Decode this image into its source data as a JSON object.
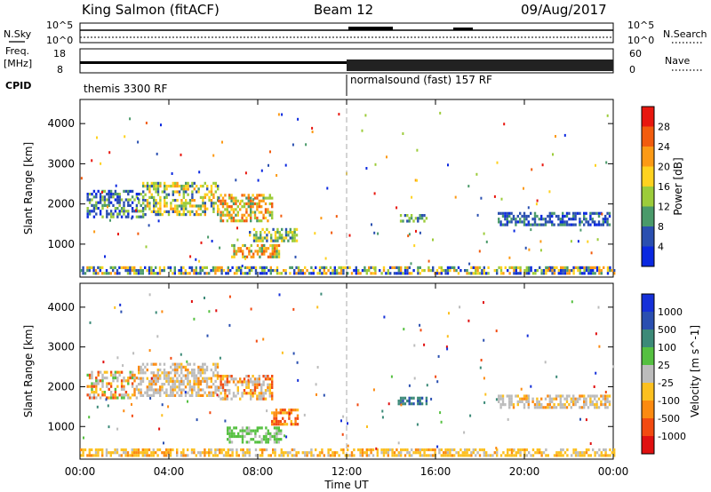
{
  "header": {
    "station": "King Salmon (fitACF)",
    "beam": "Beam 12",
    "date": "09/Aug/2017"
  },
  "top_panels": {
    "nsky_label": "N.Sky",
    "nsearch_label": "N.Search",
    "noise_ticks": [
      "10^5",
      "10^0"
    ],
    "freq_label": "Freq.",
    "freq_unit": "[MHz]",
    "freq_ticks": [
      "18",
      "8"
    ],
    "nave_label": "Nave",
    "nave_ticks": [
      "60",
      "0"
    ],
    "cpid_label": "CPID",
    "cpid_segments": [
      {
        "label": "themis 3300 RF",
        "start_hour": 0
      },
      {
        "label": "normalsound (fast) 157 RF",
        "start_hour": 12
      }
    ]
  },
  "chart_data": [
    {
      "type": "heatmap",
      "name": "power",
      "ylabel": "Slant Range [km]",
      "yticks": [
        1000,
        2000,
        3000,
        4000
      ],
      "ylim": [
        180,
        4600
      ],
      "xlim": [
        0,
        24
      ],
      "colorbar": {
        "label": "Power [dB]",
        "ticks": [
          "28",
          "24",
          "20",
          "16",
          "12",
          "8",
          "4"
        ],
        "colors": [
          "#e8170f",
          "#f25c0e",
          "#fc9a15",
          "#ffd21f",
          "#9ccc3a",
          "#4a9a6a",
          "#2a4fb0",
          "#0a28e0"
        ]
      },
      "regions": [
        {
          "x0": 0.3,
          "x1": 2.8,
          "y0": 1700,
          "y1": 2350,
          "palette": [
            6,
            6,
            5,
            7,
            4
          ]
        },
        {
          "x0": 2.8,
          "x1": 6.2,
          "y0": 1750,
          "y1": 2550,
          "palette": [
            4,
            3,
            5,
            2,
            6,
            4,
            3
          ]
        },
        {
          "x0": 6.2,
          "x1": 8.6,
          "y0": 1600,
          "y1": 2250,
          "palette": [
            2,
            1,
            3,
            4,
            2,
            5
          ]
        },
        {
          "x0": 7.6,
          "x1": 9.8,
          "y0": 1100,
          "y1": 1400,
          "palette": [
            5,
            4,
            6,
            3
          ]
        },
        {
          "x0": 6.8,
          "x1": 9.0,
          "y0": 650,
          "y1": 1000,
          "palette": [
            2,
            1,
            3,
            4,
            5
          ]
        },
        {
          "x0": 0,
          "x1": 24,
          "y0": 250,
          "y1": 450,
          "palette": [
            6,
            7,
            5,
            4,
            3,
            2
          ]
        },
        {
          "x0": 14.3,
          "x1": 15.6,
          "y0": 1550,
          "y1": 1750,
          "palette": [
            5,
            6,
            4
          ]
        },
        {
          "x0": 18.8,
          "x1": 23.8,
          "y0": 1500,
          "y1": 1800,
          "palette": [
            6,
            7,
            5,
            6
          ]
        }
      ]
    },
    {
      "type": "heatmap",
      "name": "velocity",
      "ylabel": "Slant Range [km]",
      "yticks": [
        1000,
        2000,
        3000,
        4000
      ],
      "ylim": [
        180,
        4600
      ],
      "xlim": [
        0,
        24
      ],
      "xticks": [
        "00:00",
        "04:00",
        "08:00",
        "12:00",
        "16:00",
        "20:00",
        "00:00"
      ],
      "xlabel": "Time UT",
      "colorbar": {
        "label": "Velocity [m s^-1]",
        "ticks": [
          "1000",
          "500",
          "100",
          "25",
          "-25",
          "-100",
          "-500",
          "-1000"
        ],
        "colors": [
          "#1530d8",
          "#2a4fb0",
          "#3c8a78",
          "#55c040",
          "#bcbcbc",
          "#fcc020",
          "#fc8a10",
          "#f24a10",
          "#e01010"
        ]
      },
      "regions": [
        {
          "x0": 0.3,
          "x1": 2.6,
          "y0": 1700,
          "y1": 2400,
          "palette": [
            4,
            4,
            4,
            6,
            7,
            3,
            5
          ]
        },
        {
          "x0": 2.6,
          "x1": 6.2,
          "y0": 1800,
          "y1": 2600,
          "palette": [
            4,
            4,
            4,
            4,
            5,
            6
          ]
        },
        {
          "x0": 6.2,
          "x1": 8.6,
          "y0": 1700,
          "y1": 2300,
          "palette": [
            4,
            4,
            5,
            7,
            6
          ]
        },
        {
          "x0": 8.6,
          "x1": 9.8,
          "y0": 1050,
          "y1": 1450,
          "palette": [
            6,
            5,
            6,
            7
          ]
        },
        {
          "x0": 6.6,
          "x1": 9.0,
          "y0": 600,
          "y1": 1000,
          "palette": [
            3,
            3,
            4,
            3
          ]
        },
        {
          "x0": 0,
          "x1": 24,
          "y0": 250,
          "y1": 450,
          "palette": [
            5,
            5,
            4,
            6,
            5
          ]
        },
        {
          "x0": 14.3,
          "x1": 15.6,
          "y0": 1550,
          "y1": 1750,
          "palette": [
            2,
            1,
            2
          ]
        },
        {
          "x0": 18.8,
          "x1": 23.8,
          "y0": 1500,
          "y1": 1800,
          "palette": [
            4,
            4,
            6,
            5,
            4
          ]
        }
      ]
    }
  ]
}
